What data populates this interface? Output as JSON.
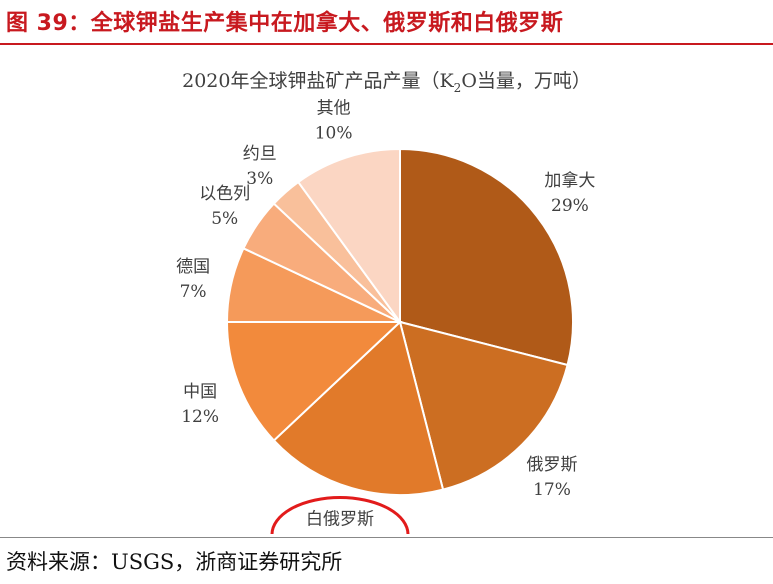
{
  "header": {
    "figure_title": "图 39：全球钾盐生产集中在加拿大、俄罗斯和白俄罗斯"
  },
  "source": "资料来源：USGS，浙商证券研究所",
  "colors": {
    "title_red": "#c8191f",
    "highlight_ring": "#e21b1b",
    "slices": [
      "#b05a18",
      "#cc6e22",
      "#e17a2a",
      "#f28a3c",
      "#f59a5a",
      "#f8ac7c",
      "#f9c09b",
      "#fbd6c3"
    ]
  },
  "chart_data": {
    "type": "pie",
    "title": {
      "pre": "2020年全球钾盐矿产品产量（K",
      "sub": "2",
      "post": "O当量，万吨）"
    },
    "slices": [
      {
        "label": "加拿大",
        "value": 29,
        "pct": "29%"
      },
      {
        "label": "俄罗斯",
        "value": 17,
        "pct": "17%"
      },
      {
        "label": "白俄罗斯",
        "value": 17,
        "pct": "17%",
        "highlighted": true
      },
      {
        "label": "中国",
        "value": 12,
        "pct": "12%"
      },
      {
        "label": "德国",
        "value": 7,
        "pct": "7%"
      },
      {
        "label": "以色列",
        "value": 5,
        "pct": "5%"
      },
      {
        "label": "约旦",
        "value": 3,
        "pct": "3%"
      },
      {
        "label": "其他",
        "value": 10,
        "pct": "10%"
      }
    ]
  }
}
